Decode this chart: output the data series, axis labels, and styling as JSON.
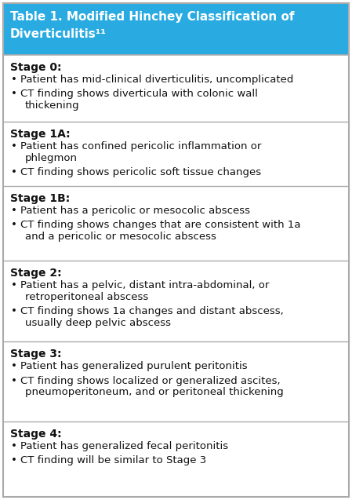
{
  "title_line1": "Table 1. Modified Hinchey Classification of",
  "title_line2": "Diverticulitis¹¹",
  "title_bg": "#29abe2",
  "title_text_color": "#ffffff",
  "border_color": "#aaaaaa",
  "bg_color": "#ffffff",
  "text_color": "#111111",
  "fig_w": 4.49,
  "fig_h": 6.37,
  "dpi": 100,
  "stages": [
    {
      "heading": "Stage 0:",
      "bullets": [
        "Patient has mid-clinical diverticulitis, uncomplicated",
        "CT finding shows diverticula with colonic wall\n    thickening"
      ]
    },
    {
      "heading": "Stage 1A:",
      "bullets": [
        "Patient has confined pericolic inflammation or\n    phlegmon",
        "CT finding shows pericolic soft tissue changes"
      ]
    },
    {
      "heading": "Stage 1B:",
      "bullets": [
        "Patient has a pericolic or mesocolic abscess",
        "CT finding shows changes that are consistent with 1a\n    and a pericolic or mesocolic abscess"
      ]
    },
    {
      "heading": "Stage 2:",
      "bullets": [
        "Patient has a pelvic, distant intra-abdominal, or\n    retroperitoneal abscess",
        "CT finding shows 1a changes and distant abscess,\n    usually deep pelvic abscess"
      ]
    },
    {
      "heading": "Stage 3:",
      "bullets": [
        "Patient has generalized purulent peritonitis",
        "CT finding shows localized or generalized ascites,\n    pneumoperitoneum, and or peritoneal thickening"
      ]
    },
    {
      "heading": "Stage 4:",
      "bullets": [
        "Patient has generalized fecal peritonitis",
        "CT finding will be similar to Stage 3"
      ]
    }
  ]
}
